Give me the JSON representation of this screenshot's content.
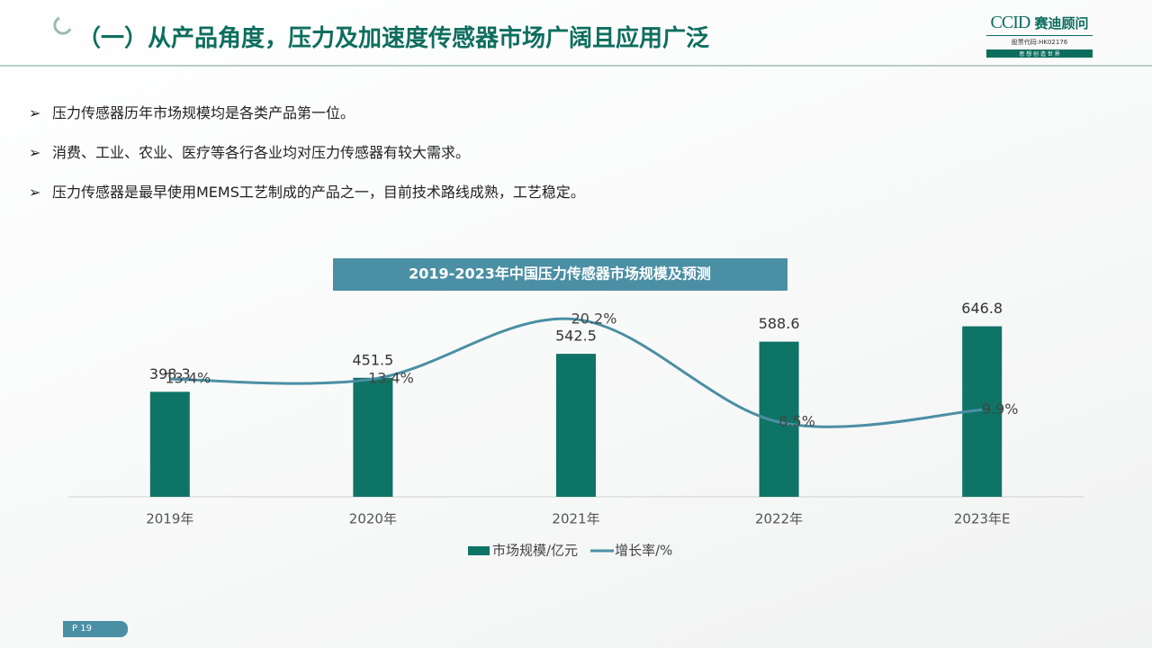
{
  "header": {
    "title": "（一）从产品角度，压力及加速度传感器市场广阔且应用广泛",
    "logo": {
      "brand": "CCID",
      "name": "赛迪顾问",
      "code": "股票代码:HK02176",
      "slogan": "思 想 创 造 世 界"
    }
  },
  "bullets": [
    "压力传感器历年市场规模均是各类产品第一位。",
    "消费、工业、农业、医疗等各行各业均对压力传感器有较大需求。",
    "压力传感器是最早使用MEMS工艺制成的产品之一，目前技术路线成熟，工艺稳定。"
  ],
  "chart_data": {
    "type": "bar",
    "title": "2019-2023年中国压力传感器市场规模及预测",
    "categories": [
      "2019年",
      "2020年",
      "2021年",
      "2022年",
      "2023年E"
    ],
    "series": [
      {
        "name": "市场规模/亿元",
        "color": "#0e7466",
        "values": [
          398.3,
          451.5,
          542.5,
          588.6,
          646.8
        ]
      },
      {
        "name": "增长率/%",
        "color": "#4b8fa4",
        "axis": "y2",
        "type": "line",
        "values": [
          13.4,
          13.4,
          20.2,
          8.5,
          9.9
        ],
        "value_labels": [
          "13.4%",
          "13.4%",
          "20.2%",
          "8.5%",
          "9.9%"
        ]
      }
    ],
    "ylim": [
      0,
      700
    ],
    "y2lim": [
      0,
      21
    ],
    "legend": "bottom"
  },
  "footer": {
    "page": "P 19"
  }
}
